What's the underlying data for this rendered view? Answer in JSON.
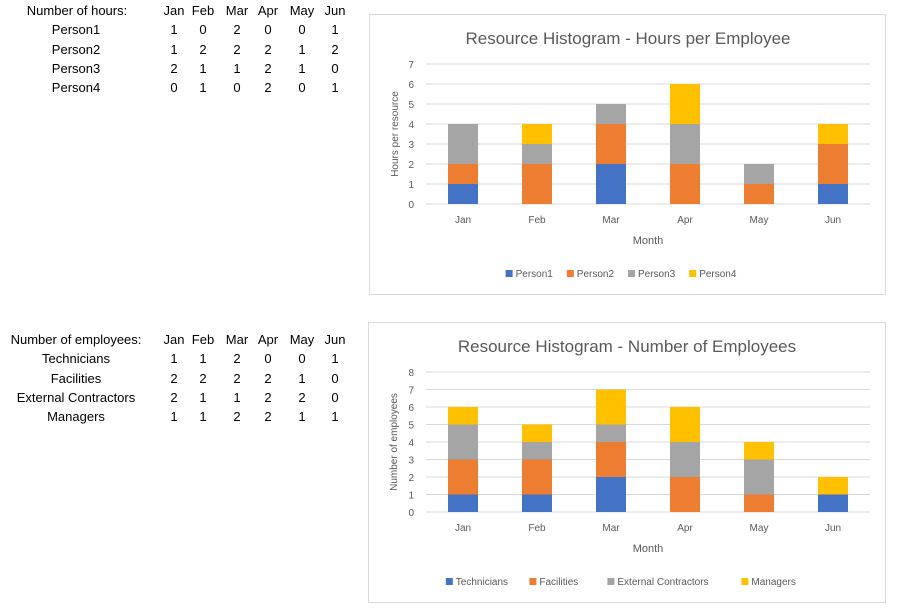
{
  "tables": [
    {
      "header": "Number of hours:",
      "months": [
        "Jan",
        "Feb",
        "Mar",
        "Apr",
        "May",
        "Jun"
      ],
      "rows": [
        {
          "label": "Person1",
          "values": [
            1,
            0,
            2,
            0,
            0,
            1
          ]
        },
        {
          "label": "Person2",
          "values": [
            1,
            2,
            2,
            2,
            1,
            2
          ]
        },
        {
          "label": "Person3",
          "values": [
            2,
            1,
            1,
            2,
            1,
            0
          ]
        },
        {
          "label": "Person4",
          "values": [
            0,
            1,
            0,
            2,
            0,
            1
          ]
        }
      ]
    },
    {
      "header": "Number of employees:",
      "months": [
        "Jan",
        "Feb",
        "Mar",
        "Apr",
        "May",
        "Jun"
      ],
      "rows": [
        {
          "label": "Technicians",
          "values": [
            1,
            1,
            2,
            0,
            0,
            1
          ]
        },
        {
          "label": "Facilities",
          "values": [
            2,
            2,
            2,
            2,
            1,
            0
          ]
        },
        {
          "label": "External Contractors",
          "values": [
            2,
            1,
            1,
            2,
            2,
            0
          ]
        },
        {
          "label": "Managers",
          "values": [
            1,
            1,
            2,
            2,
            1,
            1
          ]
        }
      ]
    }
  ],
  "chart_data": [
    {
      "type": "bar",
      "stacked": true,
      "title": "Resource Histogram - Hours per Employee",
      "xlabel": "Month",
      "ylabel": "Hours per resource",
      "ylim": [
        0,
        7
      ],
      "yticks": [
        0,
        1,
        2,
        3,
        4,
        5,
        6,
        7
      ],
      "grid": true,
      "legend": "bottom",
      "categories": [
        "Jan",
        "Feb",
        "Mar",
        "Apr",
        "May",
        "Jun"
      ],
      "series": [
        {
          "name": "Person1",
          "color": "#4472C4",
          "values": [
            1,
            0,
            2,
            0,
            0,
            1
          ]
        },
        {
          "name": "Person2",
          "color": "#ED7D31",
          "values": [
            1,
            2,
            2,
            2,
            1,
            2
          ]
        },
        {
          "name": "Person3",
          "color": "#A5A5A5",
          "values": [
            2,
            1,
            1,
            2,
            1,
            0
          ]
        },
        {
          "name": "Person4",
          "color": "#FFC000",
          "values": [
            0,
            1,
            0,
            2,
            0,
            1
          ]
        }
      ]
    },
    {
      "type": "bar",
      "stacked": true,
      "title": "Resource Histogram - Number of Employees",
      "xlabel": "Month",
      "ylabel": "Number of employees",
      "ylim": [
        0,
        8
      ],
      "yticks": [
        0,
        1,
        2,
        3,
        4,
        5,
        6,
        7,
        8
      ],
      "grid": true,
      "legend": "bottom",
      "categories": [
        "Jan",
        "Feb",
        "Mar",
        "Apr",
        "May",
        "Jun"
      ],
      "series": [
        {
          "name": "Technicians",
          "color": "#4472C4",
          "values": [
            1,
            1,
            2,
            0,
            0,
            1
          ]
        },
        {
          "name": "Facilities",
          "color": "#ED7D31",
          "values": [
            2,
            2,
            2,
            2,
            1,
            0
          ]
        },
        {
          "name": "External Contractors",
          "color": "#A5A5A5",
          "values": [
            2,
            1,
            1,
            2,
            2,
            0
          ]
        },
        {
          "name": "Managers",
          "color": "#FFC000",
          "values": [
            1,
            1,
            2,
            2,
            1,
            1
          ]
        }
      ]
    }
  ]
}
